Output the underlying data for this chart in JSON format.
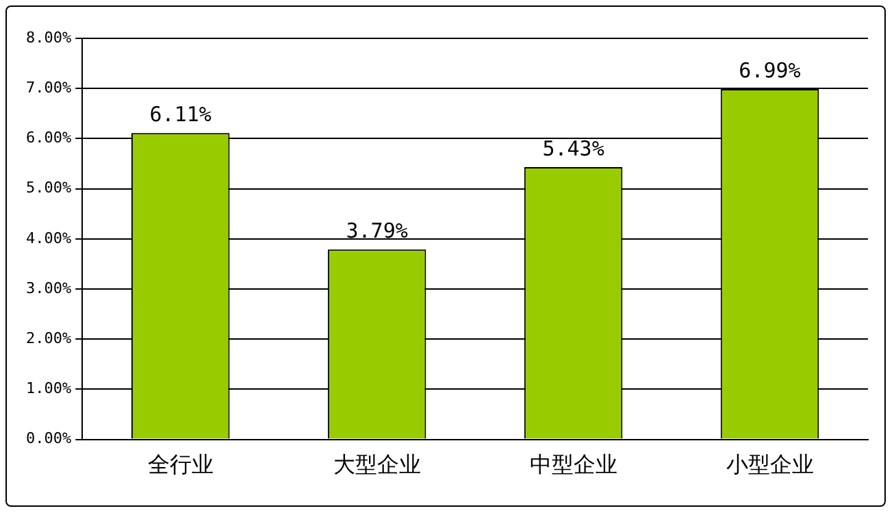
{
  "chart_data": {
    "type": "bar",
    "categories": [
      "全行业",
      "大型企业",
      "中型企业",
      "小型企业"
    ],
    "values": [
      6.11,
      3.79,
      5.43,
      6.99
    ],
    "value_labels": [
      "6.11%",
      "3.79%",
      "5.43%",
      "6.99%"
    ],
    "color": "#99cc00",
    "ylim": [
      0,
      8
    ],
    "yticks": [
      {
        "value": 0,
        "label": "0.00%"
      },
      {
        "value": 1,
        "label": "1.00%"
      },
      {
        "value": 2,
        "label": "2.00%"
      },
      {
        "value": 3,
        "label": "3.00%"
      },
      {
        "value": 4,
        "label": "4.00%"
      },
      {
        "value": 5,
        "label": "5.00%"
      },
      {
        "value": 6,
        "label": "6.00%"
      },
      {
        "value": 7,
        "label": "7.00%"
      },
      {
        "value": 8,
        "label": "8.00%"
      }
    ],
    "grid": "y",
    "legend": false
  }
}
